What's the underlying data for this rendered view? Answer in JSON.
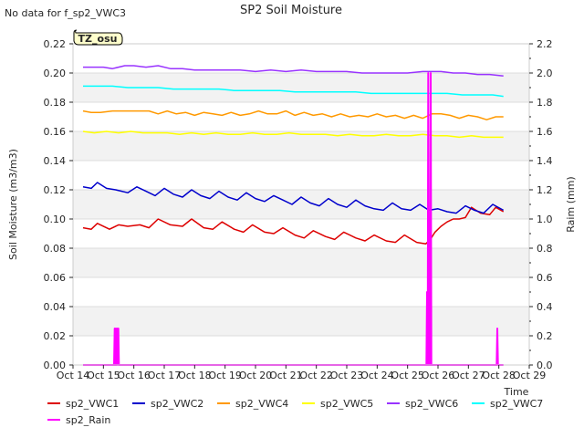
{
  "chart_data": {
    "type": "line",
    "title": "SP2 Soil Moisture",
    "no_data_note": "No data for f_sp2_VWC3",
    "badge": "TZ_osu",
    "xlabel": "Time",
    "ylabel": "Soil Moisture (m3/m3)",
    "y2label": "Raim (mm)",
    "xlim": [
      14,
      29
    ],
    "ylim": [
      0.0,
      0.22
    ],
    "y2lim": [
      0.0,
      2.2
    ],
    "x_ticks": [
      14,
      15,
      16,
      17,
      18,
      19,
      20,
      21,
      22,
      23,
      24,
      25,
      26,
      27,
      28,
      29
    ],
    "x_tick_labels": [
      "Oct 14",
      "Oct 15",
      "Oct 16",
      "Oct 17",
      "Oct 18",
      "Oct 19",
      "Oct 20",
      "Oct 21",
      "Oct 22",
      "Oct 23",
      "Oct 24",
      "Oct 25",
      "Oct 26",
      "Oct 27",
      "Oct 28",
      "Oct 29"
    ],
    "y_ticks": [
      "0.00",
      "0.02",
      "0.04",
      "0.06",
      "0.08",
      "0.10",
      "0.12",
      "0.14",
      "0.16",
      "0.18",
      "0.20",
      "0.22"
    ],
    "y2_ticks": [
      "0.0",
      "0.2",
      "0.4",
      "0.6",
      "0.8",
      "1.0",
      "1.2",
      "1.4",
      "1.6",
      "1.8",
      "2.0",
      "2.2"
    ],
    "grid": true,
    "legend_position": "bottom",
    "series": [
      {
        "name": "sp2_VWC1",
        "color": "#dd0000",
        "axis": "left",
        "x": [
          14.33,
          14.6,
          14.8,
          15.2,
          15.5,
          15.8,
          16.2,
          16.5,
          16.8,
          17.2,
          17.6,
          17.9,
          18.3,
          18.6,
          18.9,
          19.3,
          19.6,
          19.9,
          20.3,
          20.6,
          20.9,
          21.3,
          21.6,
          21.9,
          22.3,
          22.6,
          22.9,
          23.3,
          23.6,
          23.9,
          24.3,
          24.6,
          24.9,
          25.3,
          25.6,
          25.75,
          25.9,
          26.1,
          26.3,
          26.5,
          26.7,
          26.9,
          27.1,
          27.4,
          27.7,
          27.9,
          28.15
        ],
        "y": [
          0.094,
          0.093,
          0.097,
          0.093,
          0.096,
          0.095,
          0.096,
          0.094,
          0.1,
          0.096,
          0.095,
          0.1,
          0.094,
          0.093,
          0.098,
          0.093,
          0.091,
          0.096,
          0.091,
          0.09,
          0.094,
          0.089,
          0.087,
          0.092,
          0.088,
          0.086,
          0.091,
          0.087,
          0.085,
          0.089,
          0.085,
          0.084,
          0.089,
          0.084,
          0.083,
          0.086,
          0.091,
          0.095,
          0.098,
          0.1,
          0.1,
          0.101,
          0.108,
          0.104,
          0.103,
          0.108,
          0.105
        ]
      },
      {
        "name": "sp2_VWC2",
        "color": "#0000cc",
        "axis": "left",
        "x": [
          14.33,
          14.6,
          14.8,
          15.1,
          15.4,
          15.8,
          16.1,
          16.4,
          16.7,
          17.0,
          17.3,
          17.6,
          17.9,
          18.2,
          18.5,
          18.8,
          19.1,
          19.4,
          19.7,
          20.0,
          20.3,
          20.6,
          20.9,
          21.2,
          21.5,
          21.8,
          22.1,
          22.4,
          22.7,
          23.0,
          23.3,
          23.6,
          23.9,
          24.2,
          24.5,
          24.8,
          25.1,
          25.4,
          25.7,
          26.0,
          26.3,
          26.6,
          26.9,
          27.2,
          27.5,
          27.8,
          28.15
        ],
        "y": [
          0.122,
          0.121,
          0.125,
          0.121,
          0.12,
          0.118,
          0.122,
          0.119,
          0.116,
          0.121,
          0.117,
          0.115,
          0.12,
          0.116,
          0.114,
          0.119,
          0.115,
          0.113,
          0.118,
          0.114,
          0.112,
          0.116,
          0.113,
          0.11,
          0.115,
          0.111,
          0.109,
          0.114,
          0.11,
          0.108,
          0.113,
          0.109,
          0.107,
          0.106,
          0.111,
          0.107,
          0.106,
          0.11,
          0.106,
          0.107,
          0.105,
          0.104,
          0.109,
          0.106,
          0.104,
          0.11,
          0.106
        ]
      },
      {
        "name": "sp2_VWC4",
        "color": "#ff9900",
        "axis": "left",
        "x": [
          14.33,
          14.6,
          14.9,
          15.3,
          15.7,
          16.1,
          16.5,
          16.8,
          17.1,
          17.4,
          17.7,
          18.0,
          18.3,
          18.6,
          18.9,
          19.2,
          19.5,
          19.8,
          20.1,
          20.4,
          20.7,
          21.0,
          21.3,
          21.6,
          21.9,
          22.2,
          22.5,
          22.8,
          23.1,
          23.4,
          23.7,
          24.0,
          24.3,
          24.6,
          24.9,
          25.2,
          25.5,
          25.8,
          26.1,
          26.4,
          26.7,
          27.0,
          27.3,
          27.6,
          27.9,
          28.15
        ],
        "y": [
          0.174,
          0.173,
          0.173,
          0.174,
          0.174,
          0.174,
          0.174,
          0.172,
          0.174,
          0.172,
          0.173,
          0.171,
          0.173,
          0.172,
          0.171,
          0.173,
          0.171,
          0.172,
          0.174,
          0.172,
          0.172,
          0.174,
          0.171,
          0.173,
          0.171,
          0.172,
          0.17,
          0.172,
          0.17,
          0.171,
          0.17,
          0.172,
          0.17,
          0.171,
          0.169,
          0.171,
          0.169,
          0.172,
          0.172,
          0.171,
          0.169,
          0.171,
          0.17,
          0.168,
          0.17,
          0.17
        ]
      },
      {
        "name": "sp2_VWC5",
        "color": "#ffff00",
        "axis": "left",
        "x": [
          14.33,
          14.7,
          15.1,
          15.5,
          15.9,
          16.3,
          16.7,
          17.1,
          17.5,
          17.9,
          18.3,
          18.7,
          19.1,
          19.5,
          19.9,
          20.3,
          20.7,
          21.1,
          21.5,
          21.9,
          22.3,
          22.7,
          23.1,
          23.5,
          23.9,
          24.3,
          24.7,
          25.1,
          25.5,
          25.9,
          26.3,
          26.7,
          27.1,
          27.5,
          27.9,
          28.15
        ],
        "y": [
          0.16,
          0.159,
          0.16,
          0.159,
          0.16,
          0.159,
          0.159,
          0.159,
          0.158,
          0.159,
          0.158,
          0.159,
          0.158,
          0.158,
          0.159,
          0.158,
          0.158,
          0.159,
          0.158,
          0.158,
          0.158,
          0.157,
          0.158,
          0.157,
          0.157,
          0.158,
          0.157,
          0.157,
          0.158,
          0.157,
          0.157,
          0.156,
          0.157,
          0.156,
          0.156,
          0.156
        ]
      },
      {
        "name": "sp2_VWC6",
        "color": "#9933ff",
        "axis": "left",
        "x": [
          14.33,
          14.7,
          15.0,
          15.3,
          15.7,
          16.0,
          16.4,
          16.8,
          17.2,
          17.6,
          18.0,
          18.5,
          19.0,
          19.5,
          20.0,
          20.5,
          21.0,
          21.5,
          22.0,
          22.5,
          23.0,
          23.5,
          24.0,
          24.5,
          25.0,
          25.5,
          25.8,
          26.1,
          26.5,
          26.9,
          27.3,
          27.7,
          28.15
        ],
        "y": [
          0.204,
          0.204,
          0.204,
          0.203,
          0.205,
          0.205,
          0.204,
          0.205,
          0.203,
          0.203,
          0.202,
          0.202,
          0.202,
          0.202,
          0.201,
          0.202,
          0.201,
          0.202,
          0.201,
          0.201,
          0.201,
          0.2,
          0.2,
          0.2,
          0.2,
          0.201,
          0.201,
          0.201,
          0.2,
          0.2,
          0.199,
          0.199,
          0.198
        ]
      },
      {
        "name": "sp2_VWC7",
        "color": "#00ffff",
        "axis": "left",
        "x": [
          14.33,
          14.8,
          15.3,
          15.8,
          16.3,
          16.8,
          17.3,
          17.8,
          18.3,
          18.8,
          19.3,
          19.8,
          20.3,
          20.8,
          21.3,
          21.8,
          22.3,
          22.8,
          23.3,
          23.8,
          24.3,
          24.8,
          25.3,
          25.8,
          26.3,
          26.8,
          27.3,
          27.8,
          28.15
        ],
        "y": [
          0.191,
          0.191,
          0.191,
          0.19,
          0.19,
          0.19,
          0.189,
          0.189,
          0.189,
          0.189,
          0.188,
          0.188,
          0.188,
          0.188,
          0.187,
          0.187,
          0.187,
          0.187,
          0.187,
          0.186,
          0.186,
          0.186,
          0.186,
          0.186,
          0.186,
          0.185,
          0.185,
          0.185,
          0.184
        ]
      },
      {
        "name": "sp2_Rain",
        "color": "#ff00ff",
        "axis": "right",
        "x": [
          14.33,
          15.35,
          15.37,
          15.39,
          15.41,
          15.43,
          15.45,
          15.47,
          15.49,
          15.51,
          15.53,
          25.62,
          25.64,
          25.66,
          25.68,
          25.7,
          25.72,
          25.74,
          25.76,
          25.78,
          25.8,
          27.93,
          27.95,
          27.97,
          27.99,
          28.15
        ],
        "y": [
          0.0,
          0.0,
          0.25,
          0.0,
          0.25,
          0.0,
          0.25,
          0.0,
          0.25,
          0.0,
          0.0,
          0.0,
          0.5,
          0.0,
          2.0,
          0.0,
          0.5,
          0.0,
          2.0,
          0.0,
          0.0,
          0.0,
          0.25,
          0.0,
          0.0,
          0.0
        ]
      }
    ]
  }
}
